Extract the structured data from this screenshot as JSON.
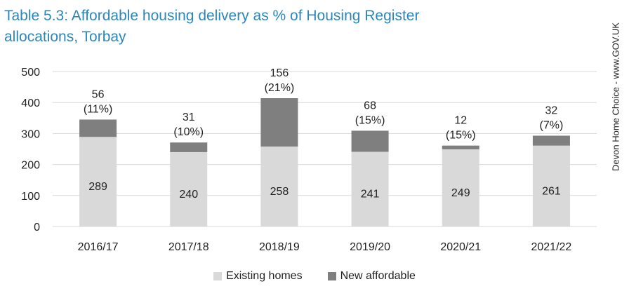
{
  "chart_data": {
    "type": "bar",
    "stacked": true,
    "title": "Table 5.3: Affordable housing delivery as % of Housing Register allocations, Torbay",
    "source_note": "Devon Home Choice - www.GOV.UK",
    "xlabel": "",
    "ylabel": "",
    "ylim": [
      0,
      500
    ],
    "yticks": [
      0,
      100,
      200,
      300,
      400,
      500
    ],
    "grid": true,
    "legend_position": "bottom",
    "categories": [
      "2016/17",
      "2017/18",
      "2018/19",
      "2019/20",
      "2020/21",
      "2021/22"
    ],
    "series": [
      {
        "name": "Existing homes",
        "color": "#d9d9d9",
        "values": [
          289,
          240,
          258,
          241,
          249,
          261
        ]
      },
      {
        "name": "New affordable",
        "color": "#7f7f7f",
        "values": [
          56,
          31,
          156,
          68,
          12,
          32
        ]
      }
    ],
    "top_labels": [
      {
        "count": "56",
        "pct": "(11%)"
      },
      {
        "count": "31",
        "pct": "(10%)"
      },
      {
        "count": "156",
        "pct": "(21%)"
      },
      {
        "count": "68",
        "pct": "(15%)"
      },
      {
        "count": "12",
        "pct": "(15%)"
      },
      {
        "count": "32",
        "pct": "(7%)"
      }
    ]
  },
  "colors": {
    "title": "#2e86b8",
    "grid": "#d9d9d9",
    "text": "#222222"
  }
}
